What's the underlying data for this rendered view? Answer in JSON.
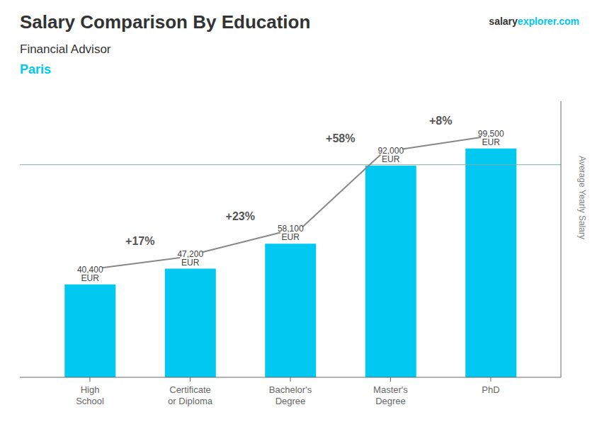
{
  "chart_data": {
    "type": "bar",
    "title": "Salary Comparison By Education",
    "subtitle": "Financial Advisor",
    "annotations": [
      "Paris",
      "salary",
      "explorer.com"
    ],
    "ylabel": "Average Yearly Salary",
    "categories": [
      "High\nSchool",
      "Certificate\nor Diploma",
      "Bachelor's\nDegree",
      "Master's\nDegree",
      "PhD"
    ],
    "values": [
      40400,
      47200,
      58100,
      92000,
      99500
    ],
    "value_labels": [
      "40,400 EUR",
      "47,200 EUR",
      "58,100 EUR",
      "92,000 EUR",
      "99,500 EUR"
    ],
    "change_labels": [
      "+17%",
      "+23%",
      "+58%",
      "+8%"
    ],
    "hline": 92400,
    "color": "#00c8f0",
    "ylim": [
      0,
      120000
    ],
    "data_labels": true,
    "tick_labels": "x",
    "grid": false
  }
}
